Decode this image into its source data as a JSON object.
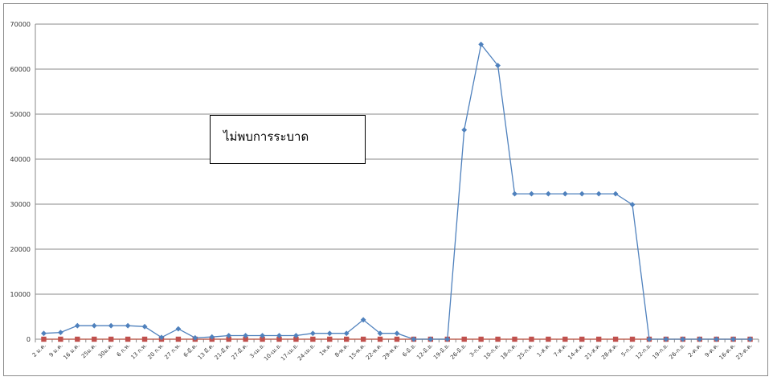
{
  "chart_data": {
    "type": "line",
    "title": "",
    "xlabel": "",
    "ylabel": "",
    "ylim": [
      0,
      70000
    ],
    "yticks": [
      0,
      10000,
      20000,
      30000,
      40000,
      50000,
      60000,
      70000
    ],
    "grid": true,
    "legend": "none",
    "categories": [
      "2 ม.ค.",
      "9 ม.ค.",
      "16 ม.ค.",
      "25ม.ค.",
      "30ม.ค.",
      "6 ก.พ.",
      "13 ก.พ.",
      "20 ก.พ.",
      "27 ก.พ.",
      "6-มี.ค.",
      "13 มี.ค.",
      "21-มี.ค.",
      "27-มี.ค.",
      "3-เม.ย.",
      "10-เม.ย.",
      "17-เม.ย.",
      "24-เม.ย.",
      "1พ.ค.",
      "8-พ.ค.",
      "15-พ.ค.",
      "22-พ.ค.",
      "29-พ.ค.",
      "6-มิ.ย.",
      "12-มิ.ย.",
      "19-มิ.ย.",
      "26-มิ.ย.",
      "3-ก.ค.",
      "10-ก.ค.",
      "18-ก.ค.",
      "25-ก.ค.",
      "1-ส.ค.",
      "7-ส.ค.",
      "14-ส.ค.",
      "21-ส.ค.",
      "28-ส.ค.",
      "5-ก.ย.",
      "12-ก.ย.",
      "19-ก.ย.",
      "26-ก.ย.",
      "2-ต.ค.",
      "9-ต.ค.",
      "16-ต.ค.",
      "23-ต.ค."
    ],
    "series": [
      {
        "color": "#4f81bd",
        "marker": "diamond",
        "values": [
          1300,
          1500,
          3000,
          3000,
          3000,
          3000,
          2800,
          400,
          2300,
          300,
          500,
          800,
          800,
          800,
          800,
          800,
          1300,
          1300,
          1300,
          4300,
          1300,
          1300,
          0,
          0,
          0,
          46500,
          65500,
          60800,
          32300,
          32300,
          32300,
          32300,
          32300,
          32300,
          32300,
          29900,
          0,
          0,
          0,
          0,
          0,
          0,
          0
        ]
      },
      {
        "color": "#c0504d",
        "marker": "square",
        "values": [
          0,
          0,
          0,
          0,
          0,
          0,
          0,
          0,
          0,
          0,
          0,
          0,
          0,
          0,
          0,
          0,
          0,
          0,
          0,
          0,
          0,
          0,
          0,
          0,
          0,
          0,
          0,
          0,
          0,
          0,
          0,
          0,
          0,
          0,
          0,
          0,
          0,
          0,
          0,
          0,
          0,
          0,
          0
        ]
      },
      {
        "color": "#9bbb59",
        "marker": "triangle",
        "values": [
          0,
          0,
          0,
          0,
          0,
          0,
          0,
          0,
          0,
          0,
          0,
          0,
          0,
          0,
          0,
          0,
          0,
          0,
          0,
          0,
          0,
          0,
          0,
          0,
          0,
          0,
          0,
          0,
          0,
          0,
          0,
          0,
          0,
          0,
          0,
          0,
          0,
          0,
          0,
          0,
          0,
          0,
          0
        ]
      }
    ],
    "annotations": [
      {
        "text": "ไม่พบการระบาด"
      }
    ]
  }
}
